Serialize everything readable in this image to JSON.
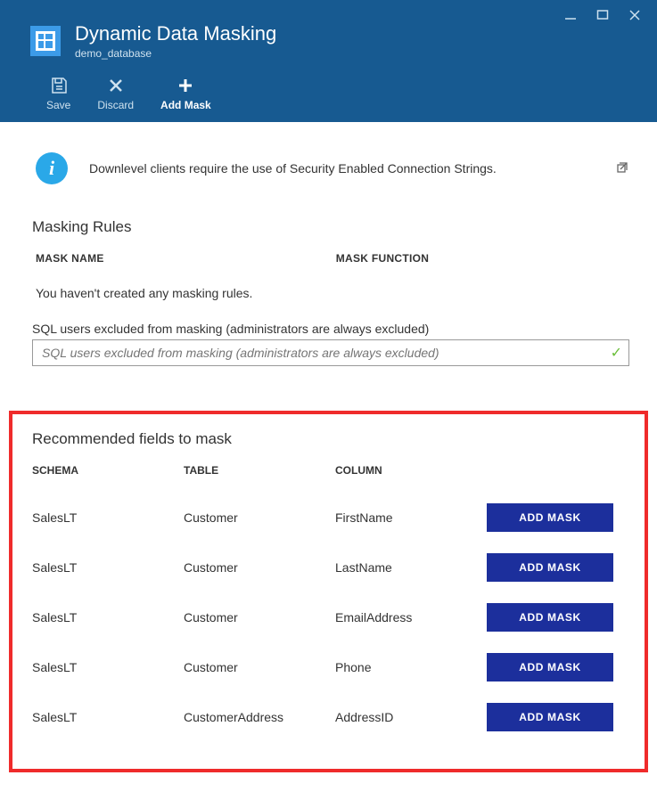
{
  "window": {
    "minimize": "—",
    "maximize": "▢",
    "close": "✕"
  },
  "header": {
    "title": "Dynamic Data Masking",
    "subtitle": "demo_database"
  },
  "toolbar": {
    "save": "Save",
    "discard": "Discard",
    "addmask": "Add Mask"
  },
  "info": {
    "text": "Downlevel clients require the use of Security Enabled Connection Strings."
  },
  "rules": {
    "title": "Masking Rules",
    "col_name": "MASK NAME",
    "col_func": "MASK FUNCTION",
    "empty": "You haven't created any masking rules."
  },
  "excluded": {
    "label": "SQL users excluded from masking (administrators are always excluded)",
    "placeholder": "SQL users excluded from masking (administrators are always excluded)"
  },
  "recommended": {
    "title": "Recommended fields to mask",
    "col_schema": "SCHEMA",
    "col_table": "TABLE",
    "col_column": "COLUMN",
    "btn": "ADD MASK",
    "rows": [
      {
        "schema": "SalesLT",
        "table": "Customer",
        "column": "FirstName"
      },
      {
        "schema": "SalesLT",
        "table": "Customer",
        "column": "LastName"
      },
      {
        "schema": "SalesLT",
        "table": "Customer",
        "column": "EmailAddress"
      },
      {
        "schema": "SalesLT",
        "table": "Customer",
        "column": "Phone"
      },
      {
        "schema": "SalesLT",
        "table": "CustomerAddress",
        "column": "AddressID"
      }
    ]
  }
}
